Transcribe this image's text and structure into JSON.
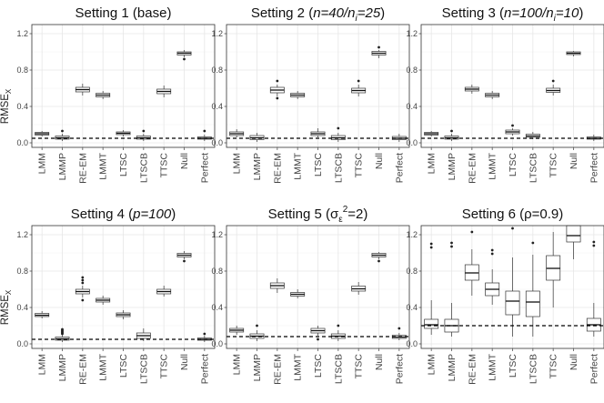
{
  "figure": {
    "ylabel_main": "RMSE",
    "ylabel_sub": "X"
  },
  "chart_data": [
    {
      "type": "box",
      "title": "Setting 1 (base)",
      "title_parts": [
        {
          "t": "Setting 1 (base)",
          "i": false
        }
      ],
      "categories": [
        "LMM",
        "LMMP",
        "RE-EM",
        "LMMT",
        "LTSC",
        "LTSCB",
        "TTSC",
        "Null",
        "Perfect"
      ],
      "ylim": [
        -0.05,
        1.3
      ],
      "yticks": [
        0.0,
        0.4,
        0.8,
        1.2
      ],
      "reference_line": 0.05,
      "boxes": [
        {
          "q1": 0.085,
          "med": 0.1,
          "q3": 0.115,
          "lo": 0.07,
          "hi": 0.13,
          "out": []
        },
        {
          "q1": 0.04,
          "med": 0.055,
          "q3": 0.075,
          "lo": 0.02,
          "hi": 0.1,
          "out": [
            0.13
          ]
        },
        {
          "q1": 0.56,
          "med": 0.585,
          "q3": 0.61,
          "lo": 0.52,
          "hi": 0.65,
          "out": []
        },
        {
          "q1": 0.505,
          "med": 0.525,
          "q3": 0.545,
          "lo": 0.48,
          "hi": 0.57,
          "out": []
        },
        {
          "q1": 0.09,
          "med": 0.105,
          "q3": 0.12,
          "lo": 0.07,
          "hi": 0.14,
          "out": []
        },
        {
          "q1": 0.04,
          "med": 0.055,
          "q3": 0.075,
          "lo": 0.02,
          "hi": 0.1,
          "out": [
            0.13
          ]
        },
        {
          "q1": 0.54,
          "med": 0.565,
          "q3": 0.59,
          "lo": 0.5,
          "hi": 0.63,
          "out": []
        },
        {
          "q1": 0.965,
          "med": 0.985,
          "q3": 1.0,
          "lo": 0.94,
          "hi": 1.02,
          "out": [
            0.92
          ]
        },
        {
          "q1": 0.04,
          "med": 0.05,
          "q3": 0.065,
          "lo": 0.02,
          "hi": 0.09,
          "out": [
            0.13
          ]
        }
      ]
    },
    {
      "type": "box",
      "title": "Setting 2 (n=40/ni=25)",
      "title_parts": [
        {
          "t": "Setting 2 (",
          "i": false
        },
        {
          "t": "n=40/n",
          "i": true
        },
        {
          "t": "i",
          "i": true,
          "sub": true
        },
        {
          "t": "=25",
          "i": true
        },
        {
          "t": ")",
          "i": false
        }
      ],
      "categories": [
        "LMM",
        "LMMP",
        "RE-EM",
        "LMMT",
        "LTSC",
        "LTSCB",
        "TTSC",
        "Null",
        "Perfect"
      ],
      "ylim": [
        -0.05,
        1.3
      ],
      "yticks": [
        0.0,
        0.4,
        0.8,
        1.2
      ],
      "reference_line": 0.05,
      "boxes": [
        {
          "q1": 0.08,
          "med": 0.1,
          "q3": 0.12,
          "lo": 0.06,
          "hi": 0.15,
          "out": []
        },
        {
          "q1": 0.035,
          "med": 0.055,
          "q3": 0.08,
          "lo": 0.01,
          "hi": 0.11,
          "out": []
        },
        {
          "q1": 0.55,
          "med": 0.58,
          "q3": 0.61,
          "lo": 0.51,
          "hi": 0.64,
          "out": [
            0.68,
            0.49
          ]
        },
        {
          "q1": 0.505,
          "med": 0.525,
          "q3": 0.545,
          "lo": 0.48,
          "hi": 0.57,
          "out": []
        },
        {
          "q1": 0.08,
          "med": 0.1,
          "q3": 0.12,
          "lo": 0.06,
          "hi": 0.16,
          "out": []
        },
        {
          "q1": 0.035,
          "med": 0.055,
          "q3": 0.08,
          "lo": 0.01,
          "hi": 0.11,
          "out": [
            0.16
          ]
        },
        {
          "q1": 0.55,
          "med": 0.575,
          "q3": 0.6,
          "lo": 0.51,
          "hi": 0.64,
          "out": [
            0.68
          ]
        },
        {
          "q1": 0.965,
          "med": 0.985,
          "q3": 1.005,
          "lo": 0.93,
          "hi": 1.02,
          "out": [
            1.05
          ]
        },
        {
          "q1": 0.035,
          "med": 0.05,
          "q3": 0.07,
          "lo": 0.01,
          "hi": 0.1,
          "out": []
        }
      ]
    },
    {
      "type": "box",
      "title": "Setting 3 (n=100/ni=10)",
      "title_parts": [
        {
          "t": "Setting 3 (",
          "i": false
        },
        {
          "t": "n=100/n",
          "i": true
        },
        {
          "t": "i",
          "i": true,
          "sub": true
        },
        {
          "t": "=10",
          "i": true
        },
        {
          "t": ")",
          "i": false
        }
      ],
      "categories": [
        "LMM",
        "LMMP",
        "RE-EM",
        "LMMT",
        "LTSC",
        "LTSCB",
        "TTSC",
        "Null",
        "Perfect"
      ],
      "ylim": [
        -0.05,
        1.3
      ],
      "yticks": [
        0.0,
        0.4,
        0.8,
        1.2
      ],
      "reference_line": 0.05,
      "boxes": [
        {
          "q1": 0.085,
          "med": 0.1,
          "q3": 0.115,
          "lo": 0.07,
          "hi": 0.13,
          "out": []
        },
        {
          "q1": 0.04,
          "med": 0.055,
          "q3": 0.075,
          "lo": 0.02,
          "hi": 0.1,
          "out": [
            0.13
          ]
        },
        {
          "q1": 0.57,
          "med": 0.59,
          "q3": 0.61,
          "lo": 0.54,
          "hi": 0.64,
          "out": []
        },
        {
          "q1": 0.505,
          "med": 0.525,
          "q3": 0.545,
          "lo": 0.48,
          "hi": 0.57,
          "out": []
        },
        {
          "q1": 0.1,
          "med": 0.12,
          "q3": 0.14,
          "lo": 0.08,
          "hi": 0.16,
          "out": [
            0.19
          ]
        },
        {
          "q1": 0.06,
          "med": 0.075,
          "q3": 0.095,
          "lo": 0.04,
          "hi": 0.12,
          "out": []
        },
        {
          "q1": 0.555,
          "med": 0.575,
          "q3": 0.6,
          "lo": 0.52,
          "hi": 0.64,
          "out": [
            0.68
          ]
        },
        {
          "q1": 0.97,
          "med": 0.985,
          "q3": 1.0,
          "lo": 0.95,
          "hi": 1.01,
          "out": []
        },
        {
          "q1": 0.04,
          "med": 0.05,
          "q3": 0.065,
          "lo": 0.02,
          "hi": 0.09,
          "out": []
        }
      ]
    },
    {
      "type": "box",
      "title": "Setting 4 (p=100)",
      "title_parts": [
        {
          "t": "Setting 4 (",
          "i": false
        },
        {
          "t": "p=100",
          "i": true
        },
        {
          "t": ")",
          "i": false
        }
      ],
      "categories": [
        "LMM",
        "LMMP",
        "RE-EM",
        "LMMT",
        "LTSC",
        "LTSCB",
        "TTSC",
        "Null",
        "Perfect"
      ],
      "ylim": [
        -0.05,
        1.3
      ],
      "yticks": [
        0.0,
        0.4,
        0.8,
        1.2
      ],
      "reference_line": 0.05,
      "boxes": [
        {
          "q1": 0.3,
          "med": 0.315,
          "q3": 0.335,
          "lo": 0.28,
          "hi": 0.36,
          "out": []
        },
        {
          "q1": 0.04,
          "med": 0.055,
          "q3": 0.075,
          "lo": 0.02,
          "hi": 0.1,
          "out": [
            0.11,
            0.12,
            0.13,
            0.14,
            0.15,
            0.16
          ]
        },
        {
          "q1": 0.55,
          "med": 0.575,
          "q3": 0.6,
          "lo": 0.51,
          "hi": 0.64,
          "out": [
            0.67,
            0.7,
            0.73,
            0.48
          ]
        },
        {
          "q1": 0.46,
          "med": 0.48,
          "q3": 0.5,
          "lo": 0.43,
          "hi": 0.53,
          "out": []
        },
        {
          "q1": 0.3,
          "med": 0.32,
          "q3": 0.34,
          "lo": 0.27,
          "hi": 0.37,
          "out": []
        },
        {
          "q1": 0.06,
          "med": 0.09,
          "q3": 0.12,
          "lo": 0.03,
          "hi": 0.17,
          "out": []
        },
        {
          "q1": 0.55,
          "med": 0.575,
          "q3": 0.6,
          "lo": 0.52,
          "hi": 0.64,
          "out": []
        },
        {
          "q1": 0.955,
          "med": 0.975,
          "q3": 0.995,
          "lo": 0.93,
          "hi": 1.02,
          "out": [
            0.91
          ]
        },
        {
          "q1": 0.04,
          "med": 0.05,
          "q3": 0.065,
          "lo": 0.02,
          "hi": 0.09,
          "out": [
            0.11
          ]
        }
      ]
    },
    {
      "type": "box",
      "title": "Setting 5 (σε2=2)",
      "title_parts": [
        {
          "t": "Setting 5 (",
          "i": false
        },
        {
          "t": "σ",
          "i": false
        },
        {
          "t": "ε",
          "i": false,
          "sub": true
        },
        {
          "t": "2",
          "i": false,
          "sup": true
        },
        {
          "t": "=2)",
          "i": false
        }
      ],
      "categories": [
        "LMM",
        "LMMP",
        "RE-EM",
        "LMMT",
        "LTSC",
        "LTSCB",
        "TTSC",
        "Null",
        "Perfect"
      ],
      "ylim": [
        -0.05,
        1.3
      ],
      "yticks": [
        0.0,
        0.4,
        0.8,
        1.2
      ],
      "reference_line": 0.08,
      "boxes": [
        {
          "q1": 0.13,
          "med": 0.15,
          "q3": 0.17,
          "lo": 0.1,
          "hi": 0.2,
          "out": []
        },
        {
          "q1": 0.06,
          "med": 0.085,
          "q3": 0.11,
          "lo": 0.03,
          "hi": 0.15,
          "out": [
            0.2
          ]
        },
        {
          "q1": 0.61,
          "med": 0.64,
          "q3": 0.67,
          "lo": 0.56,
          "hi": 0.72,
          "out": []
        },
        {
          "q1": 0.525,
          "med": 0.545,
          "q3": 0.565,
          "lo": 0.5,
          "hi": 0.6,
          "out": []
        },
        {
          "q1": 0.12,
          "med": 0.145,
          "q3": 0.17,
          "lo": 0.09,
          "hi": 0.2,
          "out": [
            0.05
          ]
        },
        {
          "q1": 0.06,
          "med": 0.085,
          "q3": 0.11,
          "lo": 0.03,
          "hi": 0.15,
          "out": [
            0.2
          ]
        },
        {
          "q1": 0.58,
          "med": 0.605,
          "q3": 0.635,
          "lo": 0.54,
          "hi": 0.68,
          "out": []
        },
        {
          "q1": 0.955,
          "med": 0.975,
          "q3": 0.995,
          "lo": 0.93,
          "hi": 1.01,
          "out": [
            0.91
          ]
        },
        {
          "q1": 0.06,
          "med": 0.075,
          "q3": 0.095,
          "lo": 0.04,
          "hi": 0.12,
          "out": [
            0.17
          ]
        }
      ]
    },
    {
      "type": "box",
      "title": "Setting 6 (ρ=0.9)",
      "title_parts": [
        {
          "t": "Setting 6 (",
          "i": false
        },
        {
          "t": "ρ",
          "i": false
        },
        {
          "t": "=0.9)",
          "i": false
        }
      ],
      "categories": [
        "LMM",
        "LMMP",
        "RE-EM",
        "LMMT",
        "LTSC",
        "LTSCB",
        "TTSC",
        "Null",
        "Perfect"
      ],
      "ylim": [
        -0.05,
        1.3
      ],
      "yticks": [
        0.0,
        0.4,
        0.8,
        1.2
      ],
      "reference_line": 0.2,
      "boxes": [
        {
          "q1": 0.17,
          "med": 0.21,
          "q3": 0.27,
          "lo": 0.1,
          "hi": 0.48,
          "out": [
            1.06,
            1.1
          ]
        },
        {
          "q1": 0.13,
          "med": 0.2,
          "q3": 0.27,
          "lo": 0.08,
          "hi": 0.45,
          "out": [
            1.07,
            1.11
          ]
        },
        {
          "q1": 0.7,
          "med": 0.78,
          "q3": 0.87,
          "lo": 0.53,
          "hi": 1.04,
          "out": [
            1.23
          ]
        },
        {
          "q1": 0.53,
          "med": 0.6,
          "q3": 0.67,
          "lo": 0.43,
          "hi": 0.82,
          "out": [
            0.99,
            1.03
          ]
        },
        {
          "q1": 0.32,
          "med": 0.47,
          "q3": 0.58,
          "lo": 0.08,
          "hi": 0.95,
          "out": [
            1.27
          ]
        },
        {
          "q1": 0.3,
          "med": 0.46,
          "q3": 0.58,
          "lo": 0.08,
          "hi": 0.98,
          "out": [
            1.11
          ]
        },
        {
          "q1": 0.7,
          "med": 0.83,
          "q3": 0.97,
          "lo": 0.4,
          "hi": 1.23,
          "out": []
        },
        {
          "q1": 1.12,
          "med": 1.19,
          "q3": 1.3,
          "lo": 0.93,
          "hi": 1.3,
          "out": []
        },
        {
          "q1": 0.14,
          "med": 0.21,
          "q3": 0.28,
          "lo": 0.08,
          "hi": 0.45,
          "out": [
            1.08,
            1.12
          ]
        }
      ]
    }
  ]
}
